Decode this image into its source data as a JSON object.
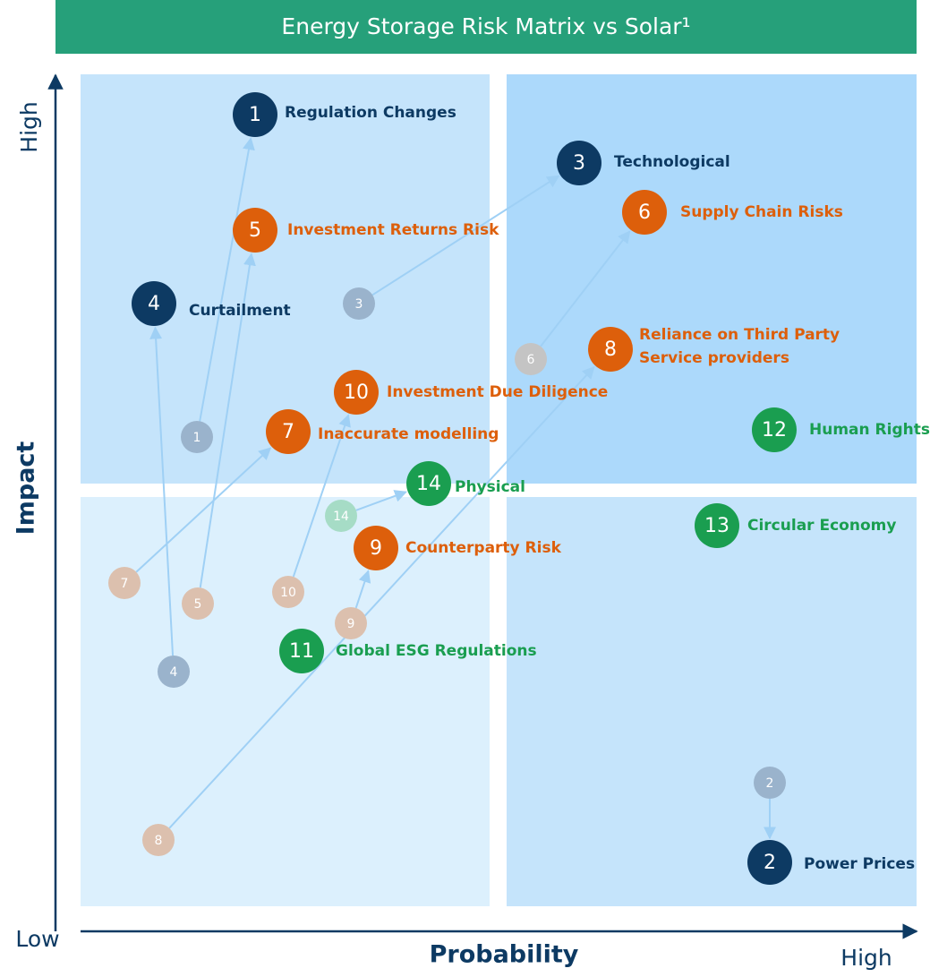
{
  "title": "Energy Storage Risk Matrix vs Solar¹",
  "axes": {
    "y_label": "Impact",
    "y_high": "High",
    "x_label": "Probability",
    "x_low": "Low",
    "x_high": "High"
  },
  "risks": [
    {
      "number": "1",
      "label": [
        "Regulation Changes"
      ]
    },
    {
      "number": "2",
      "label": [
        "Power Prices"
      ]
    },
    {
      "number": "3",
      "label": [
        "Technological"
      ]
    },
    {
      "number": "4",
      "label": [
        "Curtailment"
      ]
    },
    {
      "number": "5",
      "label": [
        "Investment Returns Risk"
      ]
    },
    {
      "number": "6",
      "label": [
        "Supply Chain Risks"
      ]
    },
    {
      "number": "7",
      "label": [
        "Inaccurate modelling"
      ]
    },
    {
      "number": "8",
      "label": [
        "Reliance on Third Party",
        "Service providers"
      ]
    },
    {
      "number": "9",
      "label": [
        "Counterparty Risk"
      ]
    },
    {
      "number": "10",
      "label": [
        "Investment Due Diligence"
      ]
    },
    {
      "number": "11",
      "label": [
        "Global ESG Regulations"
      ]
    },
    {
      "number": "12",
      "label": [
        "Human Rights"
      ]
    },
    {
      "number": "13",
      "label": [
        "Circular Economy"
      ]
    },
    {
      "number": "14",
      "label": [
        "Physical"
      ]
    }
  ]
}
